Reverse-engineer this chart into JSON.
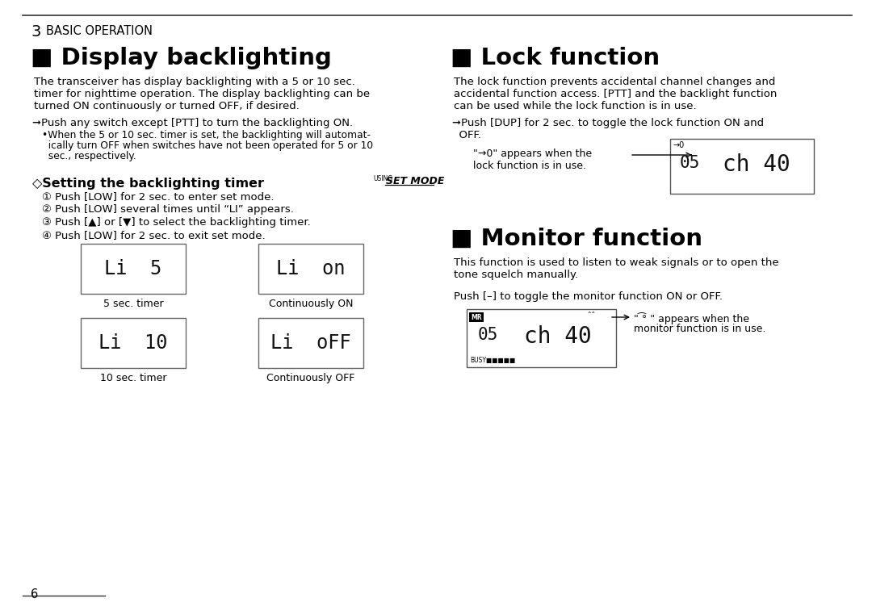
{
  "bg_color": "#ffffff",
  "page_number": "6",
  "chapter_num": "3",
  "chapter_title": "BASIC OPERATION",
  "s1_title": "■ Display backlighting",
  "s2_title": "■ Lock function",
  "s3_title": "■ Monitor function",
  "sub_title": "◇Setting the backlighting timer",
  "using_label": "USING",
  "set_mode_label": "SET MODE",
  "s1_body": [
    "The transceiver has display backlighting with a 5 or 10 sec.",
    "timer for nighttime operation. The display backlighting can be",
    "turned ON continuously or turned OFF, if desired."
  ],
  "s1_bullet": "➞Push any switch except [PTT] to turn the backlighting ON.",
  "s1_sub": [
    "•When the 5 or 10 sec. timer is set, the backlighting will automat-",
    "  ically turn OFF when switches have not been operated for 5 or 10",
    "  sec., respectively."
  ],
  "steps": [
    "① Push [LOW] for 2 sec. to enter set mode.",
    "② Push [LOW] several times until “LI” appears.",
    "③ Push [▲] or [▼] to select the backlighting timer.",
    "④ Push [LOW] for 2 sec. to exit set mode."
  ],
  "display_texts": [
    "Li  5",
    "Li  on",
    "Li  10",
    "Li  oFF"
  ],
  "display_labels": [
    "5 sec. timer",
    "Continuously ON",
    "10 sec. timer",
    "Continuously OFF"
  ],
  "s2_body": [
    "The lock function prevents accidental channel changes and",
    "accidental function access. [PTT] and the backlight function",
    "can be used while the lock function is in use."
  ],
  "s2_bullet": [
    "➞Push [DUP] for 2 sec. to toggle the lock function ON and",
    "  OFF."
  ],
  "s2_cap1": "\"→0\" appears when the",
  "s2_cap2": "lock function is in use.",
  "s3_body": [
    "This function is used to listen to weak signals or to open the",
    "tone squelch manually."
  ],
  "s3_push": "Push [–] to toggle the monitor function ON or OFF.",
  "s3_cap1": "\" ͡° \" appears when the",
  "s3_cap2": "monitor function is in use."
}
